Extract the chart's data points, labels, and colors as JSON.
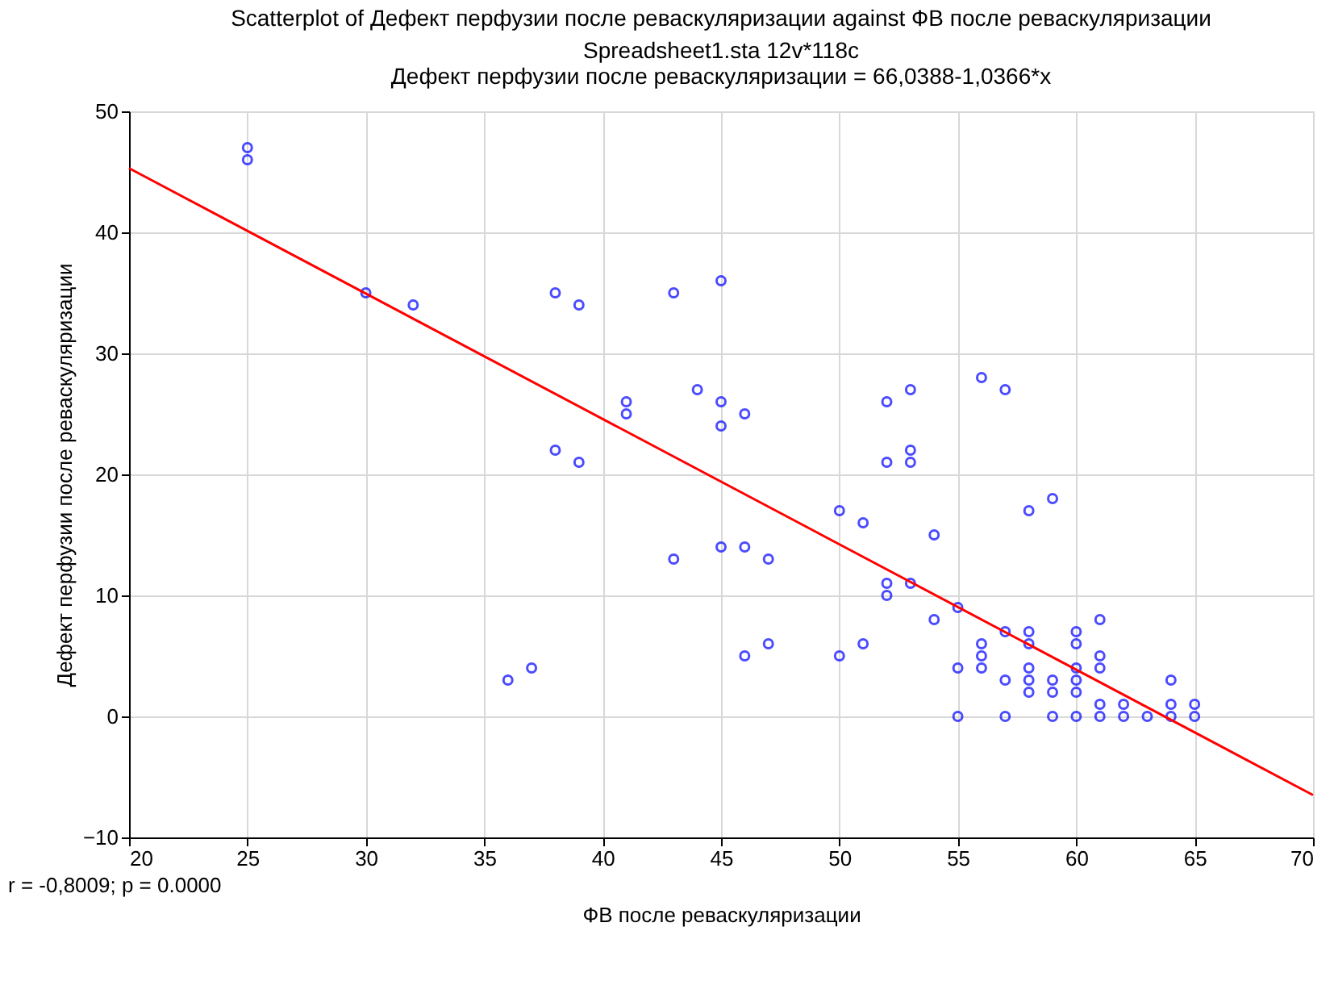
{
  "chart_data": {
    "type": "scatter",
    "title": "Scatterplot of Дефект перфузии после реваскуляризации against ФВ после реваскуляризации",
    "subtitle": [
      "Spreadsheet1.sta 12v*118c",
      "Дефект перфузии после реваскуляризации = 66,0388-1,0366*x"
    ],
    "xlabel": "ФВ после реваскуляризации",
    "ylabel": "Дефект перфузии после реваскуляризации",
    "annotations": [
      "r = -0,8009; p = 0.0000"
    ],
    "series": [
      {
        "color": "#0000ff",
        "marker": "circle",
        "x": [
          25,
          25,
          30,
          32,
          38,
          39,
          43,
          45,
          38,
          39,
          41,
          41,
          44,
          45,
          45,
          46,
          36,
          37,
          43,
          45,
          46,
          47,
          46,
          47,
          50,
          51,
          50,
          51,
          52,
          52,
          52,
          52,
          53,
          53,
          53,
          53,
          54,
          54,
          55,
          55,
          55,
          56,
          57,
          58,
          59,
          56,
          56,
          56,
          57,
          57,
          57,
          58,
          58,
          58,
          58,
          58,
          59,
          59,
          59,
          60,
          60,
          60,
          60,
          60,
          60,
          61,
          61,
          61,
          61,
          61,
          62,
          62,
          63,
          64,
          64,
          64,
          65,
          65
        ],
        "values": [
          47,
          46,
          35,
          34,
          35,
          34,
          35,
          36,
          22,
          21,
          26,
          25,
          27,
          26,
          24,
          25,
          3,
          4,
          13,
          14,
          14,
          13,
          5,
          6,
          17,
          16,
          5,
          6,
          26,
          21,
          11,
          10,
          27,
          22,
          21,
          11,
          15,
          8,
          9,
          4,
          0,
          28,
          27,
          17,
          18,
          6,
          5,
          4,
          7,
          3,
          0,
          7,
          6,
          4,
          3,
          2,
          3,
          2,
          0,
          7,
          6,
          4,
          3,
          2,
          0,
          8,
          5,
          4,
          1,
          0,
          1,
          0,
          0,
          3,
          1,
          0,
          1,
          0
        ]
      },
      {
        "type": "line",
        "color": "#ff0000",
        "marker": "none",
        "line_style": "solid",
        "x": [
          20,
          70
        ],
        "values": [
          45.3,
          -6.5
        ]
      }
    ],
    "xlim": [
      20,
      70
    ],
    "xticks": [
      20,
      25,
      30,
      35,
      40,
      45,
      50,
      55,
      60,
      65,
      70
    ],
    "ylim": [
      -10,
      50
    ],
    "yticks": [
      -10,
      0,
      10,
      20,
      30,
      40,
      50
    ],
    "grid": true
  }
}
